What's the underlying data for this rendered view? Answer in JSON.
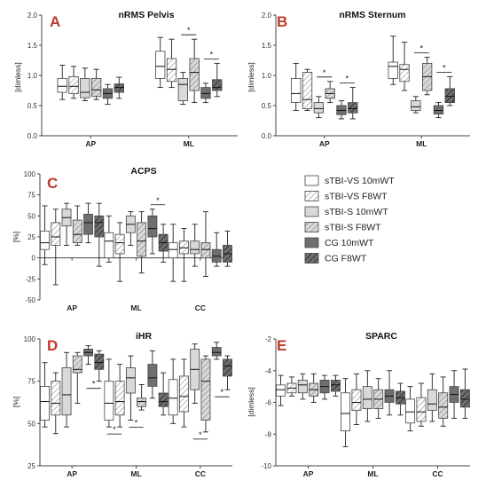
{
  "legend": [
    {
      "label": "sTBI-VS 10mWT",
      "fill": "#ffffff",
      "hatch": false
    },
    {
      "label": "sTBI-VS F8WT",
      "fill": "#ffffff",
      "hatch": true
    },
    {
      "label": "sTBI-S 10mWT",
      "fill": "#d9d9d9",
      "hatch": false
    },
    {
      "label": "sTBI-S F8WT",
      "fill": "#d9d9d9",
      "hatch": true
    },
    {
      "label": "CG 10mWT",
      "fill": "#6f6f6f",
      "hatch": false
    },
    {
      "label": "CG F8WT",
      "fill": "#6f6f6f",
      "hatch": true
    }
  ],
  "colors": {
    "letter": "#c0392b",
    "white": "#ffffff",
    "light": "#d9d9d9",
    "dark": "#6f6f6f"
  },
  "chart_data": [
    {
      "type": "box",
      "letter": "A",
      "title": "nRMS Pelvis",
      "ylabel": "[dimless]",
      "ylim": [
        0,
        2.0
      ],
      "yticks": [
        0.0,
        0.5,
        1.0,
        1.5,
        2.0
      ],
      "ytick_labels": [
        "0.0",
        "0.5",
        "1.0",
        "1.5",
        "2.0"
      ],
      "categories": [
        "AP",
        "ML"
      ],
      "boxes": [
        [
          [
            0.6,
            0.72,
            0.82,
            0.95,
            1.17
          ],
          [
            0.62,
            0.7,
            0.82,
            0.98,
            1.15
          ],
          [
            0.58,
            0.63,
            0.72,
            0.95,
            1.12
          ],
          [
            0.6,
            0.65,
            0.76,
            0.95,
            1.1
          ],
          [
            0.52,
            0.62,
            0.7,
            0.78,
            0.85
          ],
          [
            0.62,
            0.72,
            0.8,
            0.86,
            0.97
          ]
        ],
        [
          [
            0.8,
            0.95,
            1.15,
            1.4,
            1.63
          ],
          [
            0.8,
            0.9,
            1.1,
            1.28,
            1.6
          ],
          [
            0.52,
            0.58,
            0.85,
            0.95,
            1.05
          ],
          [
            0.55,
            0.75,
            1.05,
            1.28,
            1.6
          ],
          [
            0.55,
            0.62,
            0.7,
            0.8,
            0.87
          ],
          [
            0.65,
            0.75,
            0.8,
            0.93,
            1.2
          ]
        ]
      ],
      "significance": [
        {
          "category": 1,
          "pair": "sTBI-S",
          "label": "*"
        },
        {
          "category": 1,
          "pair": "CG",
          "label": "*"
        }
      ]
    },
    {
      "type": "box",
      "letter": "B",
      "title": "nRMS Sternum",
      "ylabel": "[dimless]",
      "ylim": [
        0,
        2.0
      ],
      "yticks": [
        0.0,
        0.5,
        1.0,
        1.5,
        2.0
      ],
      "ytick_labels": [
        "0.0",
        "0.5",
        "1.0",
        "1.5",
        "2.0"
      ],
      "categories": [
        "AP",
        "ML"
      ],
      "boxes": [
        [
          [
            0.42,
            0.55,
            0.7,
            0.95,
            1.2
          ],
          [
            0.42,
            0.45,
            0.6,
            1.05,
            1.1
          ],
          [
            0.3,
            0.38,
            0.45,
            0.55,
            0.65
          ],
          [
            0.55,
            0.62,
            0.7,
            0.78,
            0.9
          ],
          [
            0.28,
            0.35,
            0.42,
            0.5,
            0.58
          ],
          [
            0.28,
            0.38,
            0.45,
            0.55,
            0.8
          ]
        ],
        [
          [
            0.85,
            0.95,
            1.15,
            1.22,
            1.65
          ],
          [
            0.75,
            0.9,
            1.1,
            1.18,
            1.55
          ],
          [
            0.38,
            0.42,
            0.48,
            0.58,
            0.65
          ],
          [
            0.68,
            0.75,
            0.98,
            1.2,
            1.3
          ],
          [
            0.3,
            0.36,
            0.42,
            0.5,
            0.55
          ],
          [
            0.5,
            0.55,
            0.65,
            0.78,
            0.98
          ]
        ]
      ],
      "significance": [
        {
          "category": 0,
          "pair": "sTBI-S",
          "label": "*"
        },
        {
          "category": 0,
          "pair": "CG",
          "label": "*"
        },
        {
          "category": 1,
          "pair": "sTBI-S",
          "label": "*"
        },
        {
          "category": 1,
          "pair": "CG",
          "label": "*"
        }
      ]
    },
    {
      "type": "box",
      "letter": "C",
      "title": "ACPS",
      "ylabel": "[%]",
      "ylim": [
        -50,
        100
      ],
      "yticks": [
        -50,
        -25,
        0,
        25,
        50,
        75,
        100
      ],
      "ytick_labels": [
        "-50",
        "-25",
        "0",
        "25",
        "50",
        "75",
        "100"
      ],
      "categories": [
        "AP",
        "ML",
        "CC"
      ],
      "boxes": [
        [
          [
            -8,
            10,
            18,
            32,
            62
          ],
          [
            -32,
            15,
            25,
            42,
            58
          ],
          [
            15,
            38,
            48,
            58,
            65
          ],
          [
            15,
            18,
            28,
            45,
            62
          ],
          [
            18,
            28,
            42,
            52,
            65
          ],
          [
            -10,
            25,
            42,
            50,
            65
          ]
        ],
        [
          [
            -5,
            0,
            20,
            30,
            50
          ],
          [
            -28,
            5,
            18,
            28,
            42
          ],
          [
            15,
            30,
            40,
            50,
            55
          ],
          [
            -18,
            2,
            20,
            42,
            55
          ],
          [
            5,
            25,
            35,
            50,
            58
          ],
          [
            -5,
            8,
            18,
            28,
            40
          ]
        ],
        [
          [
            -28,
            0,
            10,
            18,
            40
          ],
          [
            -28,
            5,
            12,
            20,
            35
          ],
          [
            -10,
            5,
            10,
            20,
            40
          ],
          [
            -22,
            0,
            10,
            18,
            55
          ],
          [
            -10,
            -5,
            2,
            10,
            30
          ],
          [
            -10,
            -5,
            5,
            15,
            32
          ]
        ]
      ],
      "significance": [
        {
          "category": 1,
          "pair": "CG",
          "label": "*"
        }
      ]
    },
    {
      "type": "box",
      "letter": "D",
      "title": "iHR",
      "ylabel": "[%]",
      "ylim": [
        25,
        100
      ],
      "yticks": [
        25,
        50,
        75,
        100
      ],
      "ytick_labels": [
        "25",
        "50",
        "75",
        "100"
      ],
      "categories": [
        "AP",
        "ML",
        "CC"
      ],
      "boxes": [
        [
          [
            48,
            52,
            63,
            72,
            86
          ],
          [
            44,
            55,
            62,
            75,
            80
          ],
          [
            48,
            55,
            67,
            83,
            92
          ],
          [
            62,
            80,
            82,
            90,
            92
          ],
          [
            85,
            90,
            92,
            94,
            96
          ],
          [
            75,
            82,
            86,
            91,
            93
          ]
        ],
        [
          [
            48,
            52,
            62,
            75,
            88
          ],
          [
            48,
            55,
            63,
            75,
            85
          ],
          [
            52,
            68,
            77,
            83,
            90
          ],
          [
            58,
            60,
            63,
            65,
            73
          ],
          [
            65,
            72,
            77,
            85,
            93
          ],
          [
            55,
            60,
            63,
            68,
            80
          ]
        ],
        [
          [
            50,
            55,
            65,
            76,
            88
          ],
          [
            48,
            57,
            66,
            78,
            88
          ],
          [
            62,
            70,
            82,
            94,
            97
          ],
          [
            45,
            52,
            75,
            88,
            90
          ],
          [
            88,
            90,
            92,
            95,
            98
          ],
          [
            70,
            78,
            84,
            88,
            90
          ]
        ]
      ],
      "significance": [
        {
          "category": 0,
          "pair": "CG",
          "label": "*"
        },
        {
          "category": 1,
          "pair": "sTBI-VS",
          "label": "*"
        },
        {
          "category": 1,
          "pair": "sTBI-S",
          "label": "*"
        },
        {
          "category": 2,
          "pair": "sTBI-S",
          "label": "*"
        },
        {
          "category": 2,
          "pair": "CG",
          "label": "*"
        }
      ]
    },
    {
      "type": "box",
      "letter": "E",
      "title": "SPARC",
      "ylabel": "[dimless]",
      "ylim": [
        -10,
        -2
      ],
      "yticks": [
        -10,
        -8,
        -6,
        -4,
        -2
      ],
      "ytick_labels": [
        "-10",
        "-8",
        "-6",
        "-4",
        "-2"
      ],
      "categories": [
        "AP",
        "ML",
        "CC"
      ],
      "boxes": [
        [
          [
            -6.2,
            -5.6,
            -5.2,
            -4.9,
            -4.3
          ],
          [
            -5.6,
            -5.4,
            -5.1,
            -4.8,
            -4.4
          ],
          [
            -5.8,
            -5.4,
            -4.9,
            -4.6,
            -4.2
          ],
          [
            -6.0,
            -5.6,
            -5.2,
            -4.8,
            -4.2
          ],
          [
            -5.8,
            -5.4,
            -5.0,
            -4.6,
            -4.3
          ],
          [
            -5.6,
            -5.3,
            -4.9,
            -4.6,
            -4.3
          ]
        ],
        [
          [
            -8.8,
            -7.8,
            -6.7,
            -5.4,
            -4.5
          ],
          [
            -7.4,
            -6.5,
            -6.0,
            -5.2,
            -4.2
          ],
          [
            -7.2,
            -6.4,
            -5.8,
            -5.0,
            -4.0
          ],
          [
            -7.0,
            -6.4,
            -5.8,
            -5.2,
            -4.5
          ],
          [
            -6.8,
            -6.0,
            -5.6,
            -5.2,
            -4.0
          ],
          [
            -6.8,
            -6.1,
            -5.7,
            -5.3,
            -4.8
          ]
        ],
        [
          [
            -7.8,
            -7.3,
            -6.6,
            -5.8,
            -5.0
          ],
          [
            -7.5,
            -7.2,
            -6.6,
            -5.7,
            -4.8
          ],
          [
            -7.2,
            -6.5,
            -6.1,
            -5.2,
            -4.2
          ],
          [
            -7.5,
            -7.0,
            -6.3,
            -5.4,
            -4.4
          ],
          [
            -7.0,
            -6.0,
            -5.5,
            -5.0,
            -4.0
          ],
          [
            -7.0,
            -6.3,
            -5.8,
            -5.2,
            -3.9
          ]
        ]
      ],
      "significance": []
    }
  ]
}
